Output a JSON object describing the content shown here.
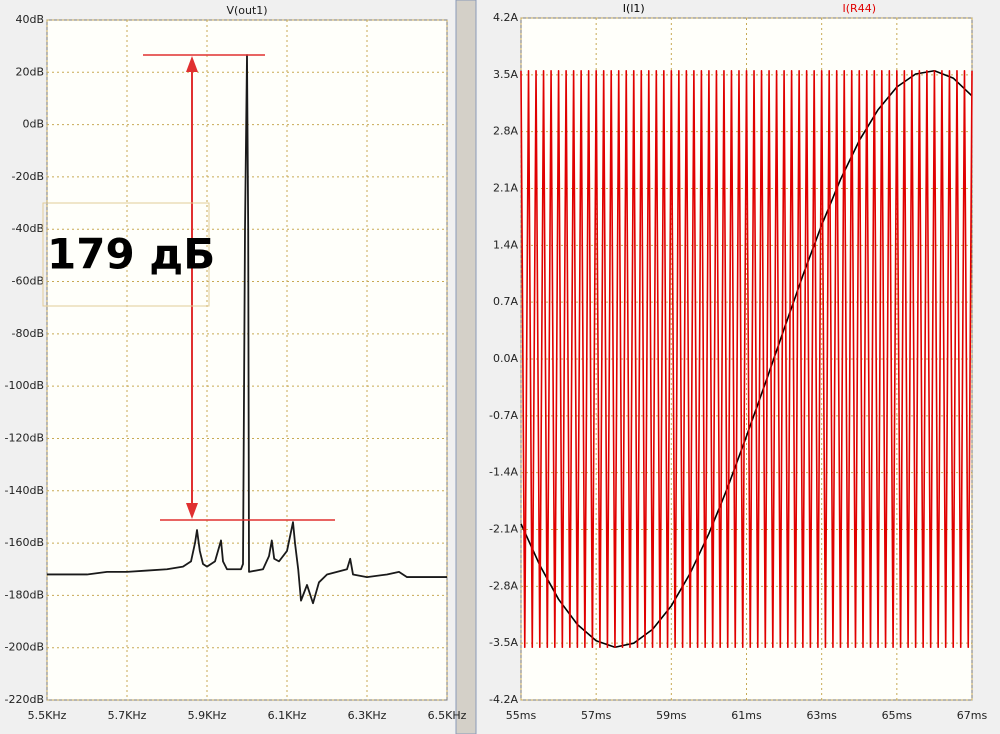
{
  "chart_data": [
    {
      "type": "line",
      "x": [
        5500,
        5600,
        5650,
        5700,
        5750,
        5800,
        5840,
        5860,
        5870,
        5875,
        5882,
        5890,
        5900,
        5920,
        5935,
        5940,
        5950,
        5985,
        5990,
        5995,
        6000,
        6003,
        6005,
        6040,
        6055,
        6062,
        6068,
        6080,
        6100,
        6115,
        6120,
        6128,
        6135,
        6150,
        6165,
        6180,
        6200,
        6250,
        6258,
        6265,
        6300,
        6350,
        6380,
        6400,
        6500
      ],
      "series": [
        {
          "name": "V(out1)",
          "color": "#1a1a1a",
          "values": [
            -172,
            -172,
            -171,
            -171,
            -170.5,
            -170,
            -169,
            -167,
            -160,
            -155,
            -163,
            -168,
            -169,
            -167,
            -159,
            -167,
            -170,
            -170,
            -168,
            -40,
            26.6,
            -40,
            -171,
            -170,
            -165,
            -159,
            -166,
            -167,
            -163,
            -152,
            -160,
            -170,
            -182,
            -176,
            -183,
            -175,
            -172,
            -170,
            -166,
            -172,
            -173,
            -172,
            -171,
            -173,
            -173
          ]
        }
      ],
      "xlim": [
        5500,
        6500
      ],
      "xticks": [
        {
          "value": 5500,
          "label": "5.5KHz"
        },
        {
          "value": 5700,
          "label": "5.7KHz"
        },
        {
          "value": 5900,
          "label": "5.9KHz"
        },
        {
          "value": 6100,
          "label": "6.1KHz"
        },
        {
          "value": 6300,
          "label": "6.3KHz"
        },
        {
          "value": 6500,
          "label": "6.5KHz"
        }
      ],
      "ylim": [
        -220,
        40
      ],
      "yticks": [
        {
          "value": 40,
          "label": "40dB"
        },
        {
          "value": 20,
          "label": "20dB"
        },
        {
          "value": 0,
          "label": "0dB"
        },
        {
          "value": -20,
          "label": "-20dB"
        },
        {
          "value": -40,
          "label": "-40dB"
        },
        {
          "value": -60,
          "label": "-60dB"
        },
        {
          "value": -80,
          "label": "-80dB"
        },
        {
          "value": -100,
          "label": "-100dB"
        },
        {
          "value": -120,
          "label": "-120dB"
        },
        {
          "value": -140,
          "label": "-140dB"
        },
        {
          "value": -160,
          "label": "-160dB"
        },
        {
          "value": -180,
          "label": "-180dB"
        },
        {
          "value": -200,
          "label": "-200dB"
        },
        {
          "value": -220,
          "label": "-220dB"
        }
      ],
      "grid": true,
      "annotation": "179 дБ"
    },
    {
      "type": "line",
      "series": [
        {
          "name": "I(l1)",
          "color": "#000000",
          "x": [
            55,
            55.5,
            56,
            56.5,
            57,
            57.5,
            58,
            58.5,
            59,
            59.5,
            60,
            60.5,
            61,
            61.5,
            62,
            62.5,
            63,
            63.5,
            64,
            64.5,
            65,
            65.5,
            66,
            66.5,
            67
          ],
          "values": [
            -2.03,
            -2.54,
            -2.96,
            -3.27,
            -3.47,
            -3.55,
            -3.5,
            -3.33,
            -3.04,
            -2.64,
            -2.15,
            -1.58,
            -0.95,
            -0.3,
            0.37,
            1.03,
            1.65,
            2.21,
            2.69,
            3.07,
            3.35,
            3.51,
            3.55,
            3.46,
            3.24
          ]
        },
        {
          "name": "I(R44)",
          "color": "#e00000",
          "x": [
            55,
            55.1,
            55.2,
            55.3,
            55.4,
            55.5,
            55.6,
            55.7,
            55.8,
            55.9,
            56,
            56.1,
            56.2,
            56.3,
            56.4,
            56.5,
            56.6,
            56.7,
            56.8,
            56.9,
            57,
            57.1,
            57.2,
            57.3,
            57.4,
            57.5,
            57.6,
            57.7,
            57.8,
            57.9,
            58,
            58.1,
            58.2,
            58.3,
            58.4,
            58.5,
            58.6,
            58.7,
            58.8,
            58.9,
            59,
            59.1,
            59.2,
            59.3,
            59.4,
            59.5,
            59.6,
            59.7,
            59.8,
            59.9,
            60,
            60.1,
            60.2,
            60.3,
            60.4,
            60.5,
            60.6,
            60.7,
            60.8,
            60.9,
            61,
            61.1,
            61.2,
            61.3,
            61.4,
            61.5,
            61.6,
            61.7,
            61.8,
            61.9,
            62,
            62.1,
            62.2,
            62.3,
            62.4,
            62.5,
            62.6,
            62.7,
            62.8,
            62.9,
            63,
            63.1,
            63.2,
            63.3,
            63.4,
            63.5,
            63.6,
            63.7,
            63.8,
            63.9,
            64,
            64.1,
            64.2,
            64.3,
            64.4,
            64.5,
            64.6,
            64.7,
            64.8,
            64.9,
            65,
            65.1,
            65.2,
            65.3,
            65.4,
            65.5,
            65.6,
            65.7,
            65.8,
            65.9,
            66,
            66.1,
            66.2,
            66.3,
            66.4,
            66.5,
            66.6,
            66.7,
            66.8,
            66.9,
            67
          ],
          "values": [
            3.55,
            -3.55,
            3.55,
            -3.55,
            3.55,
            -3.55,
            3.55,
            -3.55,
            3.55,
            -3.55,
            3.55,
            -3.55,
            3.55,
            -3.55,
            3.55,
            -3.55,
            3.55,
            -3.55,
            3.55,
            -3.55,
            3.55,
            -3.55,
            3.55,
            -3.55,
            3.55,
            -3.55,
            3.55,
            -3.55,
            3.55,
            -3.55,
            3.55,
            -3.55,
            3.55,
            -3.55,
            3.55,
            -3.55,
            3.55,
            -3.55,
            3.55,
            -3.55,
            3.55,
            -3.55,
            3.55,
            -3.55,
            3.55,
            -3.55,
            3.55,
            -3.55,
            3.55,
            -3.55,
            3.55,
            -3.55,
            3.55,
            -3.55,
            3.55,
            -3.55,
            3.55,
            -3.55,
            3.55,
            -3.55,
            3.55,
            -3.55,
            3.55,
            -3.55,
            3.55,
            -3.55,
            3.55,
            -3.55,
            3.55,
            -3.55,
            3.55,
            -3.55,
            3.55,
            -3.55,
            3.55,
            -3.55,
            3.55,
            -3.55,
            3.55,
            -3.55,
            3.55,
            -3.55,
            3.55,
            -3.55,
            3.55,
            -3.55,
            3.55,
            -3.55,
            3.55,
            -3.55,
            3.55,
            -3.55,
            3.55,
            -3.55,
            3.55,
            -3.55,
            3.55,
            -3.55,
            3.55,
            -3.55,
            3.55,
            -3.55,
            3.55,
            -3.55,
            3.55,
            -3.55,
            3.55,
            -3.55,
            3.55,
            -3.55,
            3.55,
            -3.55,
            3.55,
            -3.55,
            3.55,
            -3.55,
            3.55,
            -3.55,
            3.55,
            -3.55,
            3.55
          ]
        }
      ],
      "xlim": [
        55,
        67
      ],
      "xticks": [
        {
          "value": 55,
          "label": "55ms"
        },
        {
          "value": 57,
          "label": "57ms"
        },
        {
          "value": 59,
          "label": "59ms"
        },
        {
          "value": 61,
          "label": "61ms"
        },
        {
          "value": 63,
          "label": "63ms"
        },
        {
          "value": 65,
          "label": "65ms"
        },
        {
          "value": 67,
          "label": "67ms"
        }
      ],
      "ylim": [
        -4.2,
        4.2
      ],
      "yticks": [
        {
          "value": 4.2,
          "label": "4.2A"
        },
        {
          "value": 3.5,
          "label": "3.5A"
        },
        {
          "value": 2.8,
          "label": "2.8A"
        },
        {
          "value": 2.1,
          "label": "2.1A"
        },
        {
          "value": 1.4,
          "label": "1.4A"
        },
        {
          "value": 0.7,
          "label": "0.7A"
        },
        {
          "value": 0,
          "label": "0.0A"
        },
        {
          "value": -0.7,
          "label": "-0.7A"
        },
        {
          "value": -1.4,
          "label": "-1.4A"
        },
        {
          "value": -2.1,
          "label": "-2.1A"
        },
        {
          "value": -2.8,
          "label": "-2.8A"
        },
        {
          "value": -3.5,
          "label": "-3.5A"
        },
        {
          "value": -4.2,
          "label": "-4.2A"
        }
      ],
      "grid": true
    }
  ]
}
